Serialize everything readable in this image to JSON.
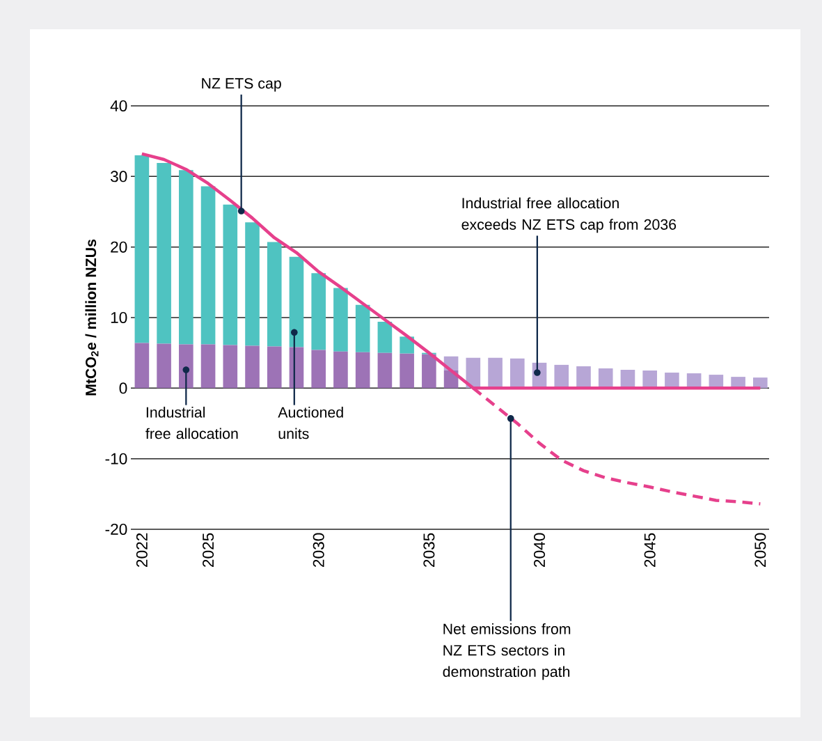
{
  "chart_data": {
    "type": "bar",
    "stacked": true,
    "ylabel": "MtCO$_{2}$e / million NZUs",
    "x": [
      2022,
      2023,
      2024,
      2025,
      2026,
      2027,
      2028,
      2029,
      2030,
      2031,
      2032,
      2033,
      2034,
      2035,
      2036,
      2037,
      2038,
      2039,
      2040,
      2041,
      2042,
      2043,
      2044,
      2045,
      2046,
      2047,
      2048,
      2049,
      2050
    ],
    "xlim": [
      2021.5,
      2050.4
    ],
    "xticks": [
      2022,
      2025,
      2030,
      2035,
      2040,
      2045,
      2050
    ],
    "ylim": [
      -20,
      40
    ],
    "yticks": [
      -20,
      -10,
      0,
      10,
      20,
      30,
      40
    ],
    "grid": "y",
    "series": [
      {
        "color": "#9d73b6",
        "values": [
          6.4,
          6.3,
          6.2,
          6.2,
          6.1,
          6.0,
          5.9,
          5.8,
          5.4,
          5.2,
          5.1,
          5.0,
          4.9,
          4.8,
          2.5,
          null,
          null,
          null,
          null,
          null,
          null,
          null,
          null,
          null,
          null,
          null,
          null,
          null,
          null
        ]
      },
      {
        "color": "#4fc3c1",
        "values": [
          26.6,
          25.6,
          24.7,
          22.4,
          19.9,
          17.5,
          14.8,
          12.8,
          10.9,
          9.0,
          6.7,
          4.4,
          2.4,
          0.2,
          null,
          null,
          null,
          null,
          null,
          null,
          null,
          null,
          null,
          null,
          null,
          null,
          null,
          null,
          null
        ]
      },
      {
        "color": "#b7a6d6",
        "values": [
          null,
          null,
          null,
          null,
          null,
          null,
          null,
          null,
          null,
          null,
          null,
          null,
          null,
          null,
          2.0,
          4.3,
          4.3,
          4.2,
          3.6,
          3.3,
          3.1,
          2.8,
          2.6,
          2.5,
          2.2,
          2.1,
          1.9,
          1.6,
          1.5
        ]
      },
      {
        "type": "line",
        "color": "#e6408c",
        "line_style": "solid",
        "x": [
          2022,
          2023,
          2024,
          2025,
          2026,
          2027,
          2028,
          2029,
          2030,
          2031,
          2032,
          2033,
          2034,
          2035,
          2036,
          2037,
          2038,
          2039,
          2040,
          2041,
          2042,
          2043,
          2044,
          2045,
          2046,
          2047,
          2048,
          2049,
          2050
        ],
        "values": [
          33.2,
          32.4,
          31.0,
          29.0,
          26.6,
          24.1,
          21.3,
          19.2,
          16.5,
          14.3,
          12.0,
          9.7,
          7.4,
          5.0,
          2.5,
          0,
          0,
          0,
          0,
          0,
          0,
          0,
          0,
          0,
          0,
          0,
          0,
          0,
          0
        ]
      },
      {
        "type": "line",
        "color": "#e6408c",
        "line_style": "dashed",
        "x": [
          2037,
          2038,
          2039,
          2040,
          2041,
          2042,
          2043,
          2044,
          2045,
          2046,
          2047,
          2048,
          2049,
          2050
        ],
        "values": [
          0,
          -2.5,
          -5.0,
          -7.8,
          -10.2,
          -11.7,
          -12.7,
          -13.4,
          -14.0,
          -14.7,
          -15.3,
          -15.9,
          -16.1,
          -16.4
        ]
      }
    ],
    "annotations": [
      {
        "text": "NZ ETS cap",
        "x": 2026.5,
        "y": 25.1
      },
      {
        "text": "Industrial free allocation",
        "x": 2024,
        "y": 2.6
      },
      {
        "text": "Auctioned units",
        "x": 2028.9,
        "y": 7.9
      },
      {
        "text": "Industrial free allocation exceeds NZ ETS cap from 2036",
        "x": 2039.9,
        "y": 2.2
      },
      {
        "text": "Net emissions from NZ ETS sectors in demonstration path",
        "x": 2038.7,
        "y": -4.3
      }
    ]
  }
}
